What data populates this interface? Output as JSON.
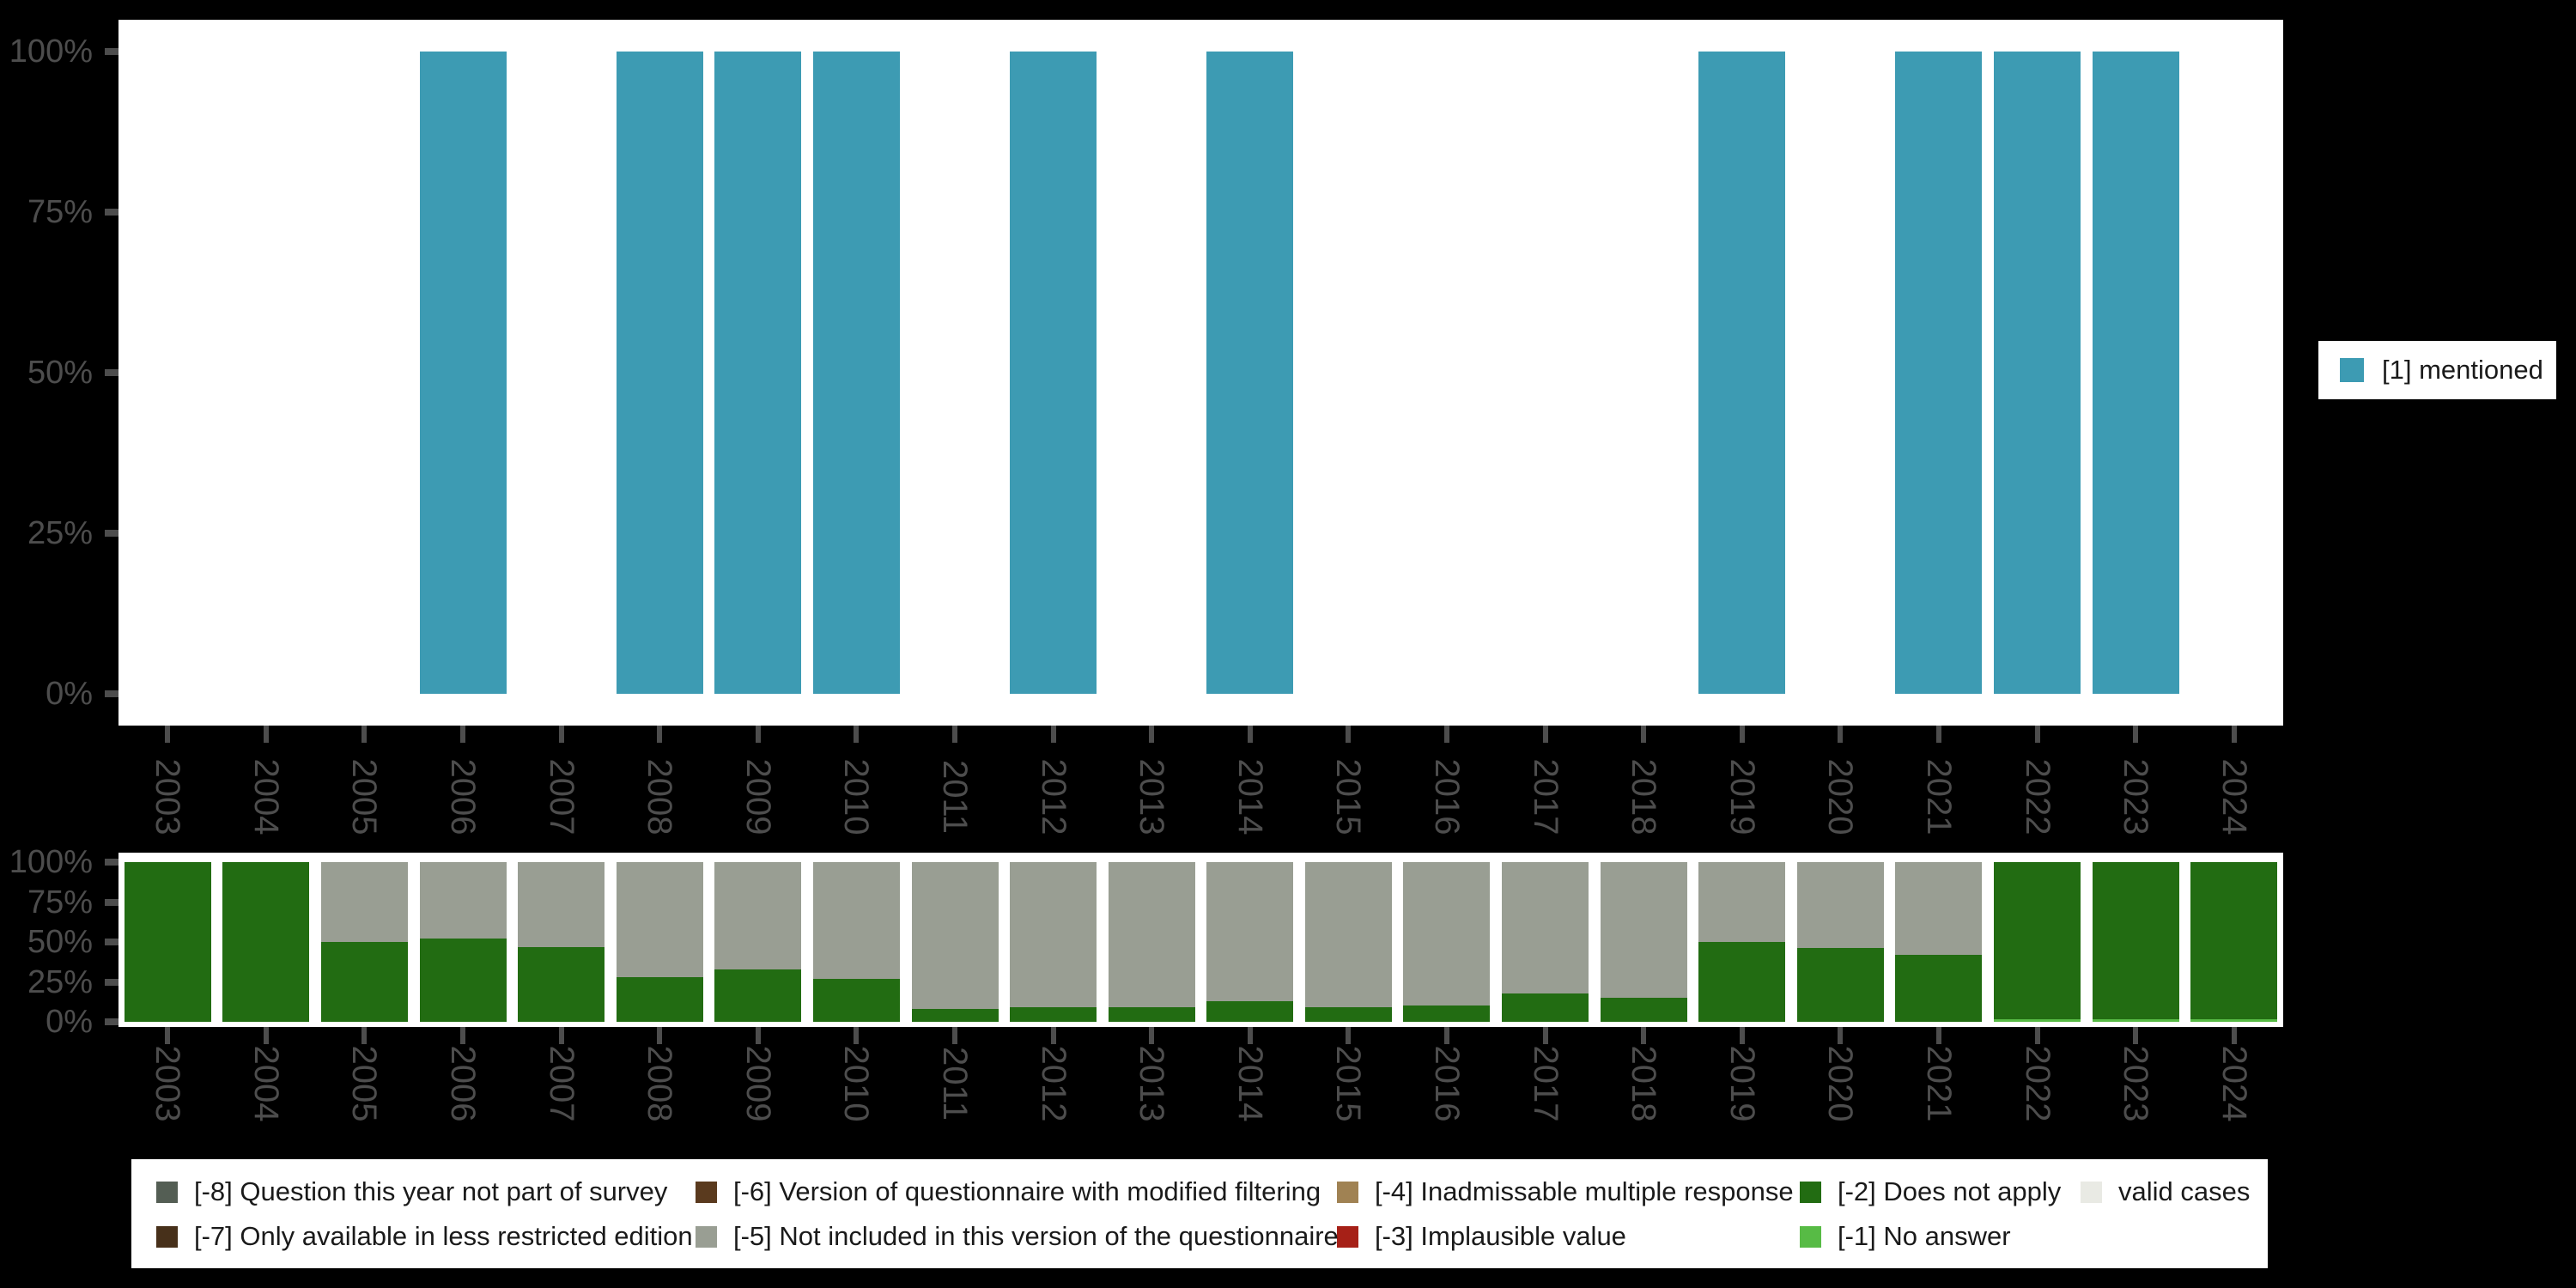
{
  "background": "#000000",
  "axis": {
    "tick_color": "#4d4d4d",
    "label_color": "#4d4d4d"
  },
  "chart_data": [
    {
      "type": "bar",
      "title": "",
      "xlabel": "",
      "ylabel": "",
      "grid": false,
      "legend_position": "right",
      "ylim": [
        0,
        100
      ],
      "categories": [
        "2003",
        "2004",
        "2005",
        "2006",
        "2007",
        "2008",
        "2009",
        "2010",
        "2011",
        "2012",
        "2013",
        "2014",
        "2015",
        "2016",
        "2017",
        "2018",
        "2019",
        "2020",
        "2021",
        "2022",
        "2023",
        "2024"
      ],
      "yticks": [
        {
          "label": "0%",
          "value": 0
        },
        {
          "label": "25%",
          "value": 25
        },
        {
          "label": "50%",
          "value": 50
        },
        {
          "label": "75%",
          "value": 75
        },
        {
          "label": "100%",
          "value": 100
        }
      ],
      "series": [
        {
          "name": "[1] mentioned",
          "color": "#3d9bb3",
          "values": [
            0,
            0,
            0,
            100,
            0,
            100,
            100,
            100,
            0,
            100,
            0,
            100,
            0,
            0,
            0,
            0,
            100,
            0,
            100,
            100,
            100,
            0
          ]
        }
      ]
    },
    {
      "type": "bar",
      "stacked": true,
      "title": "",
      "xlabel": "",
      "ylabel": "",
      "grid": false,
      "legend_position": "bottom",
      "ylim": [
        0,
        100
      ],
      "categories": [
        "2003",
        "2004",
        "2005",
        "2006",
        "2007",
        "2008",
        "2009",
        "2010",
        "2011",
        "2012",
        "2013",
        "2014",
        "2015",
        "2016",
        "2017",
        "2018",
        "2019",
        "2020",
        "2021",
        "2022",
        "2023",
        "2024"
      ],
      "yticks": [
        {
          "label": "0%",
          "value": 0
        },
        {
          "label": "25%",
          "value": 25
        },
        {
          "label": "50%",
          "value": 50
        },
        {
          "label": "75%",
          "value": 75
        },
        {
          "label": "100%",
          "value": 100
        }
      ],
      "series": [
        {
          "name": "[-1] No answer",
          "color": "#57bb45",
          "values": [
            0,
            0,
            0,
            0,
            0,
            0,
            0,
            0,
            0,
            0,
            0,
            0,
            0,
            0,
            0,
            0,
            0,
            0,
            0,
            1.5,
            1.5,
            1.5
          ]
        },
        {
          "name": "[-2] Does not apply",
          "color": "#226c12",
          "values": [
            100,
            100,
            50,
            52,
            47,
            28,
            33,
            27,
            8,
            9,
            9,
            13,
            9,
            10,
            18,
            15,
            50,
            46,
            42,
            98.5,
            98.5,
            98.5
          ]
        },
        {
          "name": "[-5] Not included in this version of the questionnaire",
          "color": "#999e93",
          "values": [
            0,
            0,
            50,
            48,
            53,
            72,
            67,
            73,
            92,
            91,
            91,
            87,
            91,
            90,
            82,
            85,
            50,
            54,
            58,
            0,
            0,
            0
          ]
        }
      ]
    }
  ],
  "legend_right": {
    "swatch_color": "#3d9bb3",
    "label": "[1] mentioned"
  },
  "legend_bottom": {
    "columns": [
      {
        "items": [
          {
            "label": "[-8] Question this year not part of survey",
            "color": "#545e54"
          },
          {
            "label": "[-7] Only available in less restricted edition",
            "color": "#47301a"
          }
        ]
      },
      {
        "items": [
          {
            "label": "[-6] Version of questionnaire with modified filtering",
            "color": "#5a3a1e"
          },
          {
            "label": "[-5] Not included in this version of the questionnaire",
            "color": "#999e93"
          }
        ]
      },
      {
        "items": [
          {
            "label": "[-4] Inadmissable multiple response",
            "color": "#a08253"
          },
          {
            "label": "[-3] Implausible value",
            "color": "#a62017"
          }
        ]
      },
      {
        "items": [
          {
            "label": "[-2] Does not apply",
            "color": "#226c12"
          },
          {
            "label": "[-1] No answer",
            "color": "#57bb45"
          }
        ]
      },
      {
        "items": [
          {
            "label": "valid cases",
            "color": "#e9eae4"
          }
        ]
      }
    ]
  }
}
